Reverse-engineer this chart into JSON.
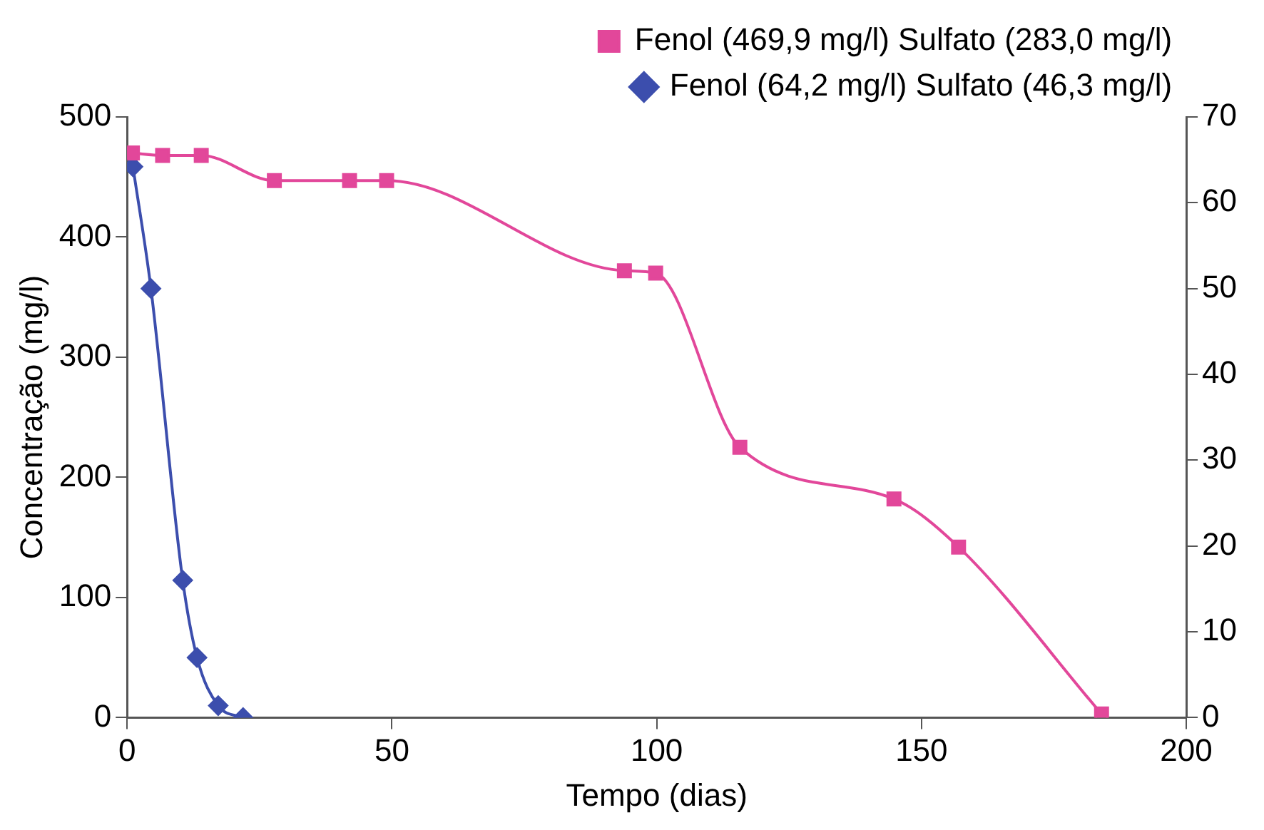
{
  "chart_data": {
    "type": "line",
    "xlabel": "Tempo (dias)",
    "ylabel": "Concentração (mg/l)",
    "xlim": [
      0,
      200
    ],
    "xticks": [
      0,
      50,
      100,
      150,
      200
    ],
    "ylim": [
      0,
      500
    ],
    "yticks": [
      0,
      100,
      200,
      300,
      400,
      500
    ],
    "y2lim": [
      0,
      70
    ],
    "y2ticks": [
      0,
      10,
      20,
      30,
      40,
      50,
      60,
      70
    ],
    "series": [
      {
        "name": "Fenol (469,9 mg/l) Sulfato (283,0 mg/l)",
        "color": "#e2479a",
        "marker": "square",
        "x": [
          1,
          6.7,
          14,
          27.8,
          42,
          49,
          93.9,
          99.8,
          115.7,
          144.8,
          157,
          184
        ],
        "values": [
          470,
          468,
          468,
          447,
          447,
          447,
          372,
          370,
          225,
          182,
          142,
          3
        ]
      },
      {
        "name": "Fenol (64,2 mg/l) Sulfato (46,3 mg/l)",
        "color": "#3c4ead",
        "marker": "diamond",
        "axis": "y2",
        "x": [
          1.1,
          4.5,
          10.5,
          13.2,
          17.2,
          21.9
        ],
        "values": [
          64.2,
          50,
          16,
          7,
          1.4,
          0
        ]
      }
    ],
    "grid": false,
    "legend": "top right"
  }
}
